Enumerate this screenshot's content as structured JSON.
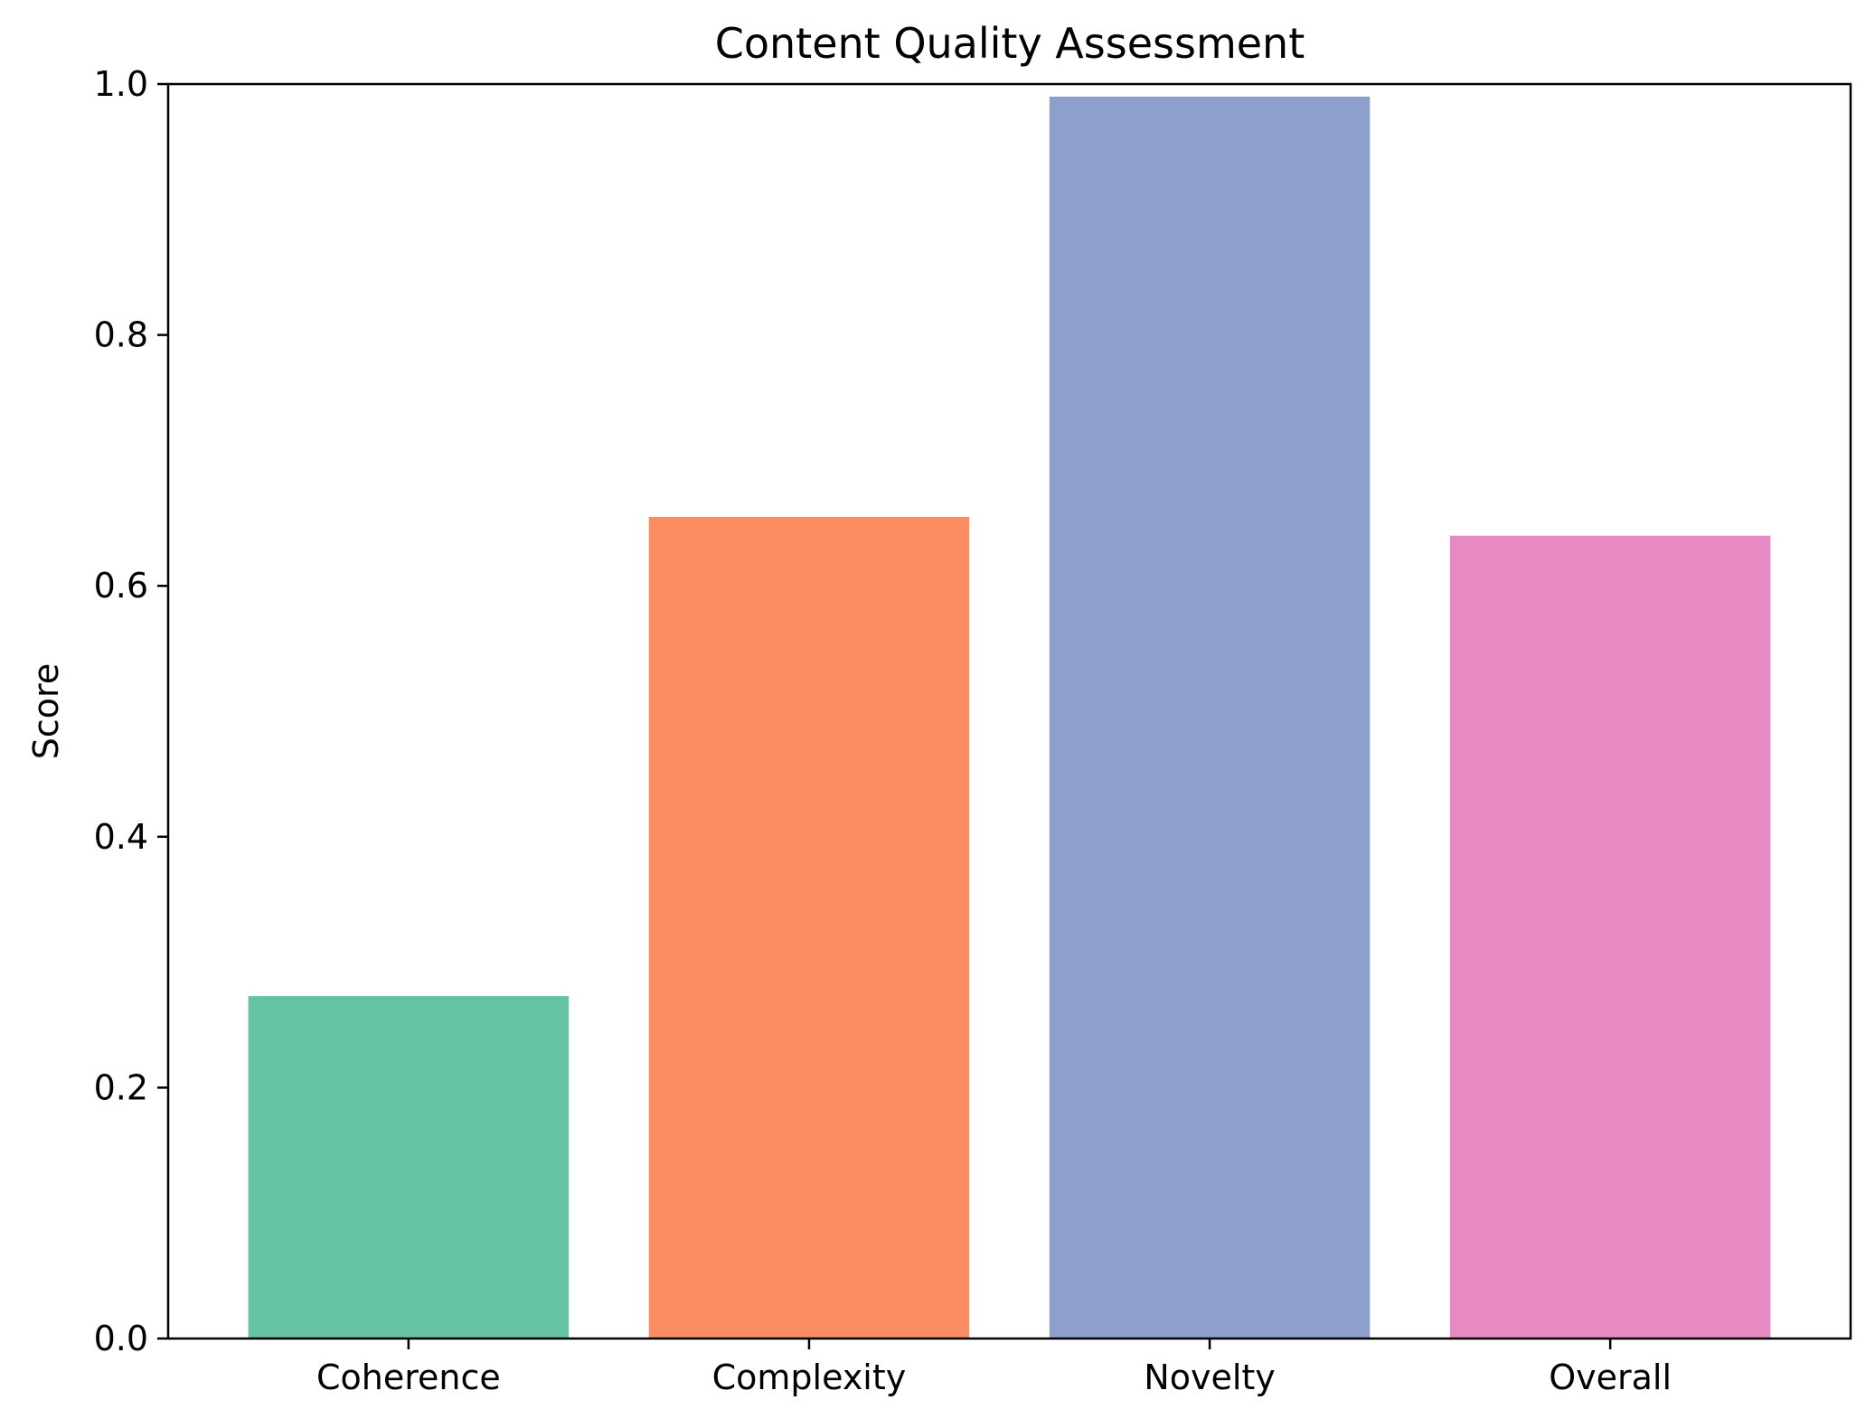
{
  "chart_data": {
    "type": "bar",
    "title": "Content Quality Assessment",
    "xlabel": "",
    "ylabel": "Score",
    "ylim": [
      0,
      1.0
    ],
    "yticks": [
      "0.0",
      "0.2",
      "0.4",
      "0.6",
      "0.8",
      "1.0"
    ],
    "categories": [
      "Coherence",
      "Complexity",
      "Novelty",
      "Overall"
    ],
    "values": [
      0.273,
      0.655,
      0.99,
      0.64
    ],
    "colors": [
      "#66c2a5",
      "#fc8d62",
      "#8da0cb",
      "#e78ac3"
    ],
    "grid": false,
    "legend": "none"
  }
}
